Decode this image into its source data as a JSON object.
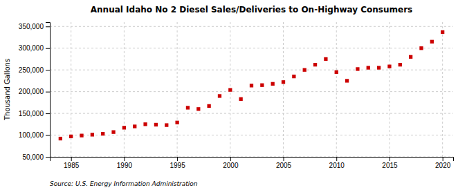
{
  "chart_data": {
    "type": "scatter",
    "title": "Annual Idaho No 2 Diesel Sales/Deliveries to On-Highway Consumers",
    "ylabel": "Thousand Gallons",
    "source": "Source: U.S. Energy Information Administration",
    "x": [
      1984,
      1985,
      1986,
      1987,
      1988,
      1989,
      1990,
      1991,
      1992,
      1993,
      1994,
      1995,
      1996,
      1997,
      1998,
      1999,
      2000,
      2001,
      2002,
      2003,
      2004,
      2005,
      2006,
      2007,
      2008,
      2009,
      2010,
      2011,
      2012,
      2013,
      2014,
      2015,
      2016,
      2017,
      2018,
      2019,
      2020
    ],
    "values": [
      92000,
      97000,
      99000,
      101000,
      103000,
      107000,
      117000,
      120000,
      125000,
      124000,
      123000,
      129000,
      163000,
      160000,
      167000,
      190000,
      204000,
      183000,
      214000,
      215000,
      218000,
      222000,
      235000,
      250000,
      262000,
      275000,
      245000,
      225000,
      252000,
      255000,
      255000,
      258000,
      262000,
      280000,
      300000,
      315000,
      337000
    ],
    "color": "#cc0000",
    "marker": "square",
    "xlim": [
      1983,
      2021
    ],
    "ylim": [
      50000,
      360000
    ],
    "xticks": [
      1985,
      1990,
      1995,
      2000,
      2005,
      2010,
      2015,
      2020
    ],
    "yticks": [
      {
        "value": 50000,
        "label": "50,000"
      },
      {
        "value": 100000,
        "label": "100,000"
      },
      {
        "value": 150000,
        "label": "150,000"
      },
      {
        "value": 200000,
        "label": "200,000"
      },
      {
        "value": 250000,
        "label": "250,000"
      },
      {
        "value": 300000,
        "label": "300,000"
      },
      {
        "value": 350000,
        "label": "350,000"
      }
    ],
    "grid": true
  }
}
